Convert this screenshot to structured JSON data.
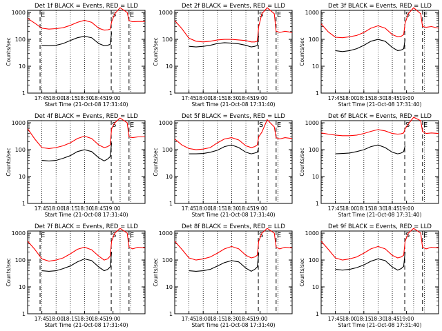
{
  "figure": {
    "panel_ylabel": "Counts/sec",
    "x_tick_labels": [
      "17:45",
      "18:00",
      "18:15",
      "18:30",
      "18:45",
      "19:00"
    ],
    "y_tick_labels": [
      "1",
      "10",
      "100",
      "1000"
    ],
    "xlabel": "Start Time (21-Oct-08 17:31:40)",
    "colors": {
      "events": "#000000",
      "lld": "#ff0000",
      "axes": "#000000"
    }
  },
  "chart_data": [
    {
      "type": "line",
      "title": "Det 1f BLACK = Events, RED = LLD",
      "yscale": "log",
      "ylim": [
        1,
        1200
      ],
      "xlabel": "Start Time (21-Oct-08 17:31:40)",
      "ylabel": "Counts/sec",
      "markers": [
        {
          "x": 35,
          "label": "E"
        },
        {
          "x": 235,
          "label": "S"
        },
        {
          "x": 285,
          "label": "E"
        }
      ],
      "series": [
        {
          "name": "Events",
          "color": "#000000",
          "x": [
            40,
            60,
            80,
            100,
            120,
            140,
            160,
            180,
            200,
            215,
            225,
            232,
            236
          ],
          "values": [
            60,
            58,
            60,
            70,
            90,
            115,
            130,
            115,
            70,
            58,
            60,
            65,
            180
          ]
        },
        {
          "name": "LLD",
          "color": "#ff0000",
          "x": [
            0,
            20,
            40,
            60,
            80,
            100,
            120,
            140,
            160,
            180,
            200,
            215,
            225,
            232,
            236,
            245,
            260,
            280,
            285,
            295,
            310,
            330
          ],
          "values": [
            600,
            400,
            260,
            240,
            250,
            270,
            330,
            430,
            510,
            430,
            260,
            220,
            225,
            240,
            450,
            900,
            1500,
            1000,
            500,
            450,
            460,
            460
          ]
        }
      ]
    },
    {
      "type": "line",
      "title": "Det 2f BLACK = Events, RED = LLD",
      "yscale": "log",
      "ylim": [
        1,
        1200
      ],
      "xlabel": "Start Time (21-Oct-08 17:31:40)",
      "ylabel": "Counts/sec",
      "markers": [
        {
          "x": 235,
          "label": "S"
        },
        {
          "x": 285,
          "label": "E"
        }
      ],
      "series": [
        {
          "name": "Events",
          "color": "#000000",
          "x": [
            40,
            60,
            80,
            100,
            120,
            140,
            160,
            180,
            200,
            215,
            225,
            232,
            236
          ],
          "values": [
            55,
            52,
            55,
            60,
            70,
            75,
            72,
            68,
            60,
            52,
            55,
            60,
            140
          ]
        },
        {
          "name": "LLD",
          "color": "#ff0000",
          "x": [
            0,
            20,
            40,
            60,
            80,
            100,
            120,
            140,
            160,
            180,
            200,
            215,
            225,
            232,
            236,
            245,
            260,
            280,
            285,
            295,
            310,
            330
          ],
          "values": [
            500,
            250,
            110,
            85,
            80,
            85,
            95,
            100,
            100,
            95,
            90,
            80,
            80,
            85,
            300,
            900,
            1500,
            900,
            200,
            180,
            200,
            180
          ]
        }
      ]
    },
    {
      "type": "line",
      "title": "Det 3f BLACK = Events, RED = LLD",
      "yscale": "log",
      "ylim": [
        1,
        1200
      ],
      "xlabel": "Start Time (21-Oct-08 17:31:40)",
      "ylabel": "Counts/sec",
      "markers": [
        {
          "x": 235,
          "label": "S"
        },
        {
          "x": 285,
          "label": "E"
        }
      ],
      "series": [
        {
          "name": "Events",
          "color": "#000000",
          "x": [
            40,
            60,
            80,
            100,
            120,
            140,
            160,
            180,
            200,
            215,
            225,
            232,
            236
          ],
          "values": [
            38,
            35,
            38,
            45,
            60,
            85,
            100,
            85,
            50,
            38,
            40,
            45,
            100
          ]
        },
        {
          "name": "LLD",
          "color": "#ff0000",
          "x": [
            0,
            20,
            40,
            60,
            80,
            100,
            120,
            140,
            160,
            180,
            200,
            215,
            225,
            232,
            236,
            245,
            260,
            280,
            285,
            295,
            310,
            330
          ],
          "values": [
            380,
            190,
            120,
            115,
            125,
            140,
            180,
            260,
            320,
            260,
            150,
            125,
            130,
            150,
            400,
            900,
            1500,
            900,
            300,
            280,
            300,
            260
          ]
        }
      ]
    },
    {
      "type": "line",
      "title": "Det 4f BLACK = Events, RED = LLD",
      "yscale": "log",
      "ylim": [
        1,
        1200
      ],
      "xlabel": "Start Time (21-Oct-08 17:31:40)",
      "ylabel": "Counts/sec",
      "markers": [
        {
          "x": 235,
          "label": "S"
        },
        {
          "x": 285,
          "label": "E"
        }
      ],
      "series": [
        {
          "name": "Events",
          "color": "#000000",
          "x": [
            40,
            60,
            80,
            100,
            120,
            140,
            160,
            180,
            200,
            215,
            225,
            232,
            236
          ],
          "values": [
            40,
            38,
            40,
            48,
            60,
            85,
            100,
            85,
            50,
            38,
            45,
            55,
            180
          ]
        },
        {
          "name": "LLD",
          "color": "#ff0000",
          "x": [
            0,
            20,
            40,
            60,
            80,
            100,
            120,
            140,
            160,
            180,
            200,
            215,
            225,
            232,
            236,
            245,
            260,
            280,
            285,
            295,
            310,
            330
          ],
          "values": [
            600,
            250,
            120,
            110,
            120,
            140,
            180,
            260,
            320,
            260,
            150,
            120,
            130,
            150,
            600,
            1000,
            1500,
            1000,
            300,
            280,
            300,
            300
          ]
        }
      ]
    },
    {
      "type": "line",
      "title": "Det 5f BLACK = Events, RED = LLD",
      "yscale": "log",
      "ylim": [
        1,
        1200
      ],
      "xlabel": "Start Time (21-Oct-08 17:31:40)",
      "ylabel": "Counts/sec",
      "markers": [
        {
          "x": 235,
          "label": "S"
        },
        {
          "x": 285,
          "label": "E"
        }
      ],
      "series": [
        {
          "name": "Events",
          "color": "#000000",
          "x": [
            40,
            60,
            80,
            100,
            120,
            140,
            160,
            180,
            200,
            215,
            225,
            232,
            236
          ],
          "values": [
            70,
            70,
            72,
            80,
            95,
            130,
            150,
            120,
            80,
            70,
            75,
            80,
            120
          ]
        },
        {
          "name": "LLD",
          "color": "#ff0000",
          "x": [
            0,
            20,
            40,
            60,
            80,
            100,
            120,
            140,
            160,
            180,
            200,
            215,
            225,
            232,
            236,
            245,
            260,
            280,
            285,
            295,
            310,
            330
          ],
          "values": [
            250,
            150,
            110,
            100,
            105,
            120,
            180,
            250,
            280,
            230,
            140,
            120,
            130,
            150,
            300,
            450,
            1300,
            700,
            280,
            250,
            280,
            260
          ]
        }
      ]
    },
    {
      "type": "line",
      "title": "Det 6f BLACK = Events, RED = LLD",
      "yscale": "log",
      "ylim": [
        1,
        1200
      ],
      "xlabel": "Start Time (21-Oct-08 17:31:40)",
      "ylabel": "Counts/sec",
      "markers": [
        {
          "x": 235,
          "label": "S"
        },
        {
          "x": 285,
          "label": "E"
        }
      ],
      "series": [
        {
          "name": "Events",
          "color": "#000000",
          "x": [
            40,
            60,
            80,
            100,
            120,
            140,
            160,
            180,
            200,
            215,
            225,
            232,
            236
          ],
          "values": [
            70,
            72,
            75,
            85,
            100,
            130,
            150,
            120,
            80,
            70,
            75,
            85,
            140
          ]
        },
        {
          "name": "LLD",
          "color": "#ff0000",
          "x": [
            0,
            20,
            40,
            60,
            80,
            100,
            120,
            140,
            160,
            180,
            200,
            215,
            225,
            232,
            236,
            245,
            260,
            280,
            285,
            295,
            310,
            330
          ],
          "values": [
            420,
            380,
            350,
            330,
            330,
            350,
            400,
            480,
            560,
            500,
            400,
            380,
            390,
            420,
            600,
            900,
            1600,
            1200,
            480,
            400,
            420,
            400
          ]
        }
      ]
    },
    {
      "type": "line",
      "title": "Det 7f BLACK = Events, RED = LLD",
      "yscale": "log",
      "ylim": [
        1,
        1200
      ],
      "xlabel": "Start Time (21-Oct-08 17:31:40)",
      "ylabel": "Counts/sec",
      "markers": [
        {
          "x": 35,
          "label": "E"
        },
        {
          "x": 235,
          "label": "S"
        },
        {
          "x": 285,
          "label": "E"
        }
      ],
      "series": [
        {
          "name": "Events",
          "color": "#000000",
          "x": [
            40,
            60,
            80,
            100,
            120,
            140,
            160,
            180,
            200,
            215,
            225,
            232,
            236
          ],
          "values": [
            40,
            38,
            40,
            48,
            60,
            85,
            110,
            95,
            55,
            40,
            45,
            55,
            200
          ]
        },
        {
          "name": "LLD",
          "color": "#ff0000",
          "x": [
            0,
            20,
            40,
            60,
            80,
            100,
            120,
            140,
            160,
            180,
            200,
            215,
            225,
            232,
            236,
            245,
            260,
            280,
            285,
            295,
            310,
            330
          ],
          "values": [
            500,
            250,
            110,
            90,
            100,
            120,
            170,
            250,
            300,
            240,
            140,
            100,
            110,
            140,
            500,
            1000,
            1500,
            1000,
            300,
            260,
            300,
            280
          ]
        }
      ]
    },
    {
      "type": "line",
      "title": "Det 8f BLACK = Events, RED = LLD",
      "yscale": "log",
      "ylim": [
        1,
        1200
      ],
      "xlabel": "Start Time (21-Oct-08 17:31:40)",
      "ylabel": "Counts/sec",
      "markers": [
        {
          "x": 235,
          "label": "S"
        },
        {
          "x": 285,
          "label": "E"
        }
      ],
      "series": [
        {
          "name": "Events",
          "color": "#000000",
          "x": [
            40,
            60,
            80,
            100,
            120,
            140,
            160,
            180,
            200,
            215,
            225,
            232,
            236
          ],
          "values": [
            40,
            38,
            40,
            45,
            60,
            80,
            95,
            85,
            50,
            38,
            45,
            55,
            180
          ]
        },
        {
          "name": "LLD",
          "color": "#ff0000",
          "x": [
            0,
            20,
            40,
            60,
            80,
            100,
            120,
            140,
            160,
            180,
            200,
            215,
            225,
            232,
            236,
            245,
            260,
            280,
            285,
            295,
            310,
            330
          ],
          "values": [
            500,
            250,
            120,
            100,
            110,
            130,
            180,
            260,
            320,
            260,
            150,
            120,
            130,
            150,
            500,
            1000,
            1500,
            1000,
            300,
            260,
            300,
            280
          ]
        }
      ]
    },
    {
      "type": "line",
      "title": "Det 9f BLACK = Events, RED = LLD",
      "yscale": "log",
      "ylim": [
        1,
        1200
      ],
      "xlabel": "Start Time (21-Oct-08 17:31:40)",
      "ylabel": "Counts/sec",
      "markers": [
        {
          "x": 235,
          "label": "S"
        },
        {
          "x": 285,
          "label": "E"
        }
      ],
      "series": [
        {
          "name": "Events",
          "color": "#000000",
          "x": [
            40,
            60,
            80,
            100,
            120,
            140,
            160,
            180,
            200,
            215,
            225,
            232,
            236
          ],
          "values": [
            45,
            42,
            45,
            52,
            65,
            90,
            110,
            95,
            55,
            42,
            48,
            58,
            200
          ]
        },
        {
          "name": "LLD",
          "color": "#ff0000",
          "x": [
            0,
            20,
            40,
            60,
            80,
            100,
            120,
            140,
            160,
            180,
            200,
            215,
            225,
            232,
            236,
            245,
            260,
            280,
            285,
            295,
            310,
            330
          ],
          "values": [
            500,
            250,
            120,
            100,
            110,
            130,
            180,
            260,
            320,
            260,
            150,
            120,
            130,
            150,
            500,
            1000,
            1500,
            1000,
            300,
            260,
            300,
            280
          ]
        }
      ]
    }
  ]
}
